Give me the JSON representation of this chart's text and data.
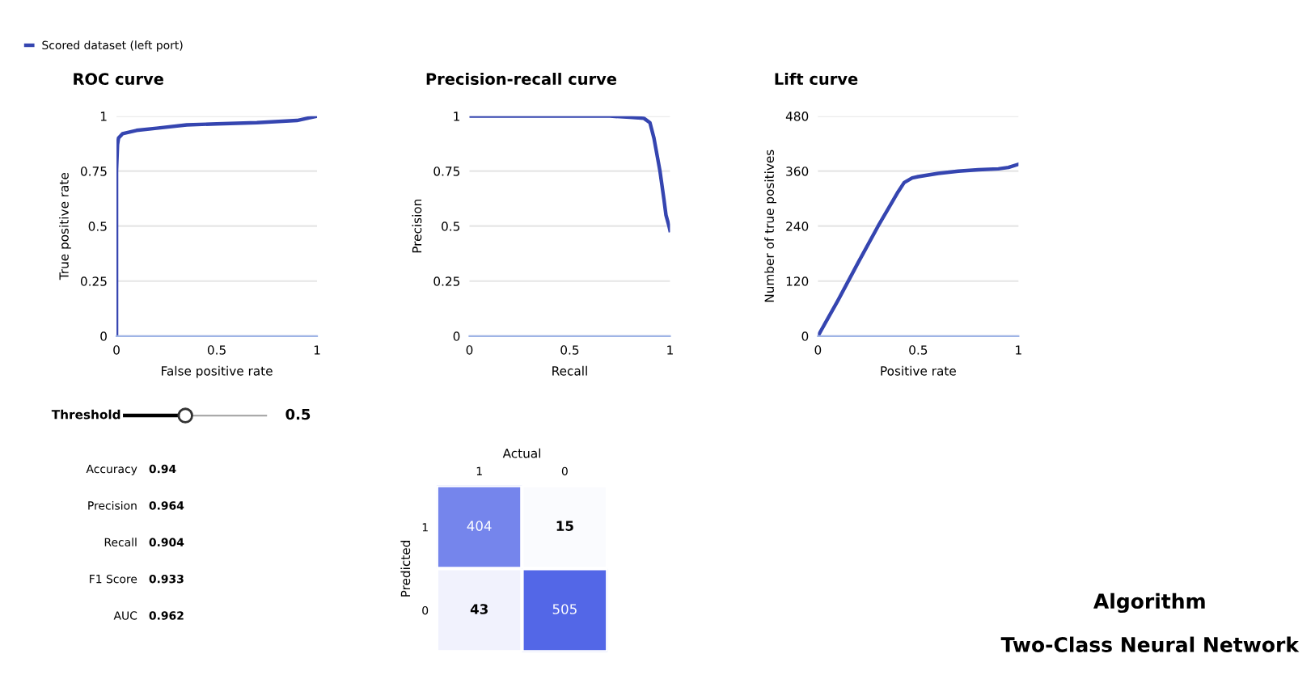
{
  "chart_data": [
    {
      "type": "line",
      "title": "ROC curve",
      "xlabel": "False positive rate",
      "ylabel": "True positive rate",
      "xlim": [
        0,
        1
      ],
      "ylim": [
        0,
        1
      ],
      "xticks": [
        0,
        0.5,
        1
      ],
      "yticks": [
        0,
        0.25,
        0.5,
        0.75,
        1
      ],
      "grid": "y",
      "legend": "top left",
      "marker": "none",
      "series": [
        {
          "name": "Scored dataset (left port)",
          "color": "#3545b0",
          "x": [
            0,
            0,
            0.005,
            0.01,
            0.03,
            0.1,
            0.2,
            0.35,
            0.5,
            0.7,
            0.9,
            0.95,
            1
          ],
          "values": [
            0,
            0.75,
            0.87,
            0.9,
            0.92,
            0.935,
            0.945,
            0.96,
            0.965,
            0.97,
            0.98,
            0.99,
            1
          ]
        }
      ]
    },
    {
      "type": "line",
      "title": "Precision-recall curve",
      "xlabel": "Recall",
      "ylabel": "Precision",
      "xlim": [
        0,
        1
      ],
      "ylim": [
        0,
        1
      ],
      "xticks": [
        0,
        0.5,
        1
      ],
      "yticks": [
        0,
        0.25,
        0.5,
        0.75,
        1
      ],
      "grid": "y",
      "marker": "none",
      "series": [
        {
          "color": "#3545b0",
          "x": [
            0,
            0.7,
            0.8,
            0.87,
            0.9,
            0.92,
            0.93,
            0.95,
            0.97,
            0.98,
            0.995,
            1
          ],
          "values": [
            1,
            1,
            0.995,
            0.99,
            0.97,
            0.9,
            0.85,
            0.75,
            0.62,
            0.55,
            0.5,
            0.48
          ]
        }
      ]
    },
    {
      "type": "line",
      "title": "Lift curve",
      "xlabel": "Positive rate",
      "ylabel": "Number of true positives",
      "xlim": [
        0,
        1
      ],
      "ylim": [
        0,
        480
      ],
      "xticks": [
        0,
        0.5,
        1
      ],
      "yticks": [
        0,
        120,
        240,
        360,
        480
      ],
      "grid": "y",
      "marker": "none",
      "series": [
        {
          "color": "#3545b0",
          "x": [
            0,
            0.1,
            0.2,
            0.3,
            0.4,
            0.43,
            0.47,
            0.5,
            0.6,
            0.7,
            0.8,
            0.9,
            0.95,
            1
          ],
          "values": [
            0,
            78,
            160,
            240,
            315,
            335,
            345,
            348,
            355,
            360,
            363,
            365,
            368,
            375
          ]
        }
      ]
    },
    {
      "type": "other",
      "annotations": [
        "Threshold",
        "0.5",
        "Accuracy",
        "0.94",
        "Precision",
        "0.964",
        "Recall",
        "0.904",
        "F1 Score",
        "0.933",
        "AUC",
        "0.962",
        "Algorithm",
        "Two-Class Neural Network"
      ]
    },
    {
      "type": "heatmap",
      "xlabel": "Actual",
      "ylabel": "Predicted",
      "categories": [
        "1",
        "0"
      ],
      "y_categories": [
        "1",
        "0"
      ],
      "cells": [
        [
          404,
          15
        ],
        [
          43,
          505
        ]
      ],
      "data_labels": true
    }
  ]
}
